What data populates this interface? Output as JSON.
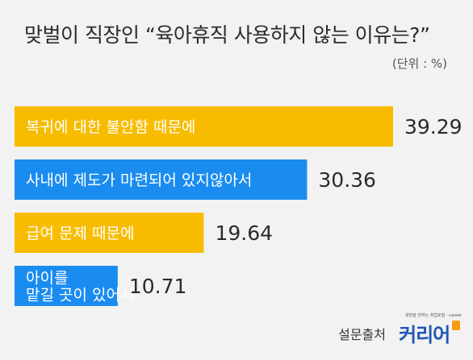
{
  "header": {
    "title": "맞벌이 직장인 “육아휴직 사용하지 않는 이유는?”",
    "unit": "(단위 : %)"
  },
  "footer": {
    "source_label": "설문출처",
    "logo_name": "커리어",
    "logo_tagline": "희망을 전하는 취업포털 · career"
  },
  "colors": {
    "yellow": "#f7bc00",
    "blue": "#1a8cf0",
    "background": "#f2f2f2"
  },
  "chart_data": {
    "type": "bar",
    "orientation": "horizontal",
    "categories": [
      "복귀에 대한 불안함 때문에",
      "사내에 제도가 마련되어 있지않아서",
      "급여 문제 때문에",
      "아이를 맡길 곳이 있어서"
    ],
    "category_lines": [
      [
        "복귀에 대한 불안함 때문에"
      ],
      [
        "사내에 제도가 마련되어 있지않아서"
      ],
      [
        "급여 문제 때문에"
      ],
      [
        "아이를",
        "맡길 곳이 있어서"
      ]
    ],
    "values": [
      39.29,
      30.36,
      19.64,
      10.71
    ],
    "value_labels": [
      "39.29",
      "30.36",
      "19.64",
      "10.71"
    ],
    "bar_colors": [
      "#f7bc00",
      "#1a8cf0",
      "#f7bc00",
      "#1a8cf0"
    ],
    "title": "맞벌이 직장인 “육아휴직 사용하지 않는 이유는?”",
    "unit": "(단위 : %)",
    "xlim": [
      0,
      39.29
    ],
    "grid": false,
    "legend": "none"
  }
}
